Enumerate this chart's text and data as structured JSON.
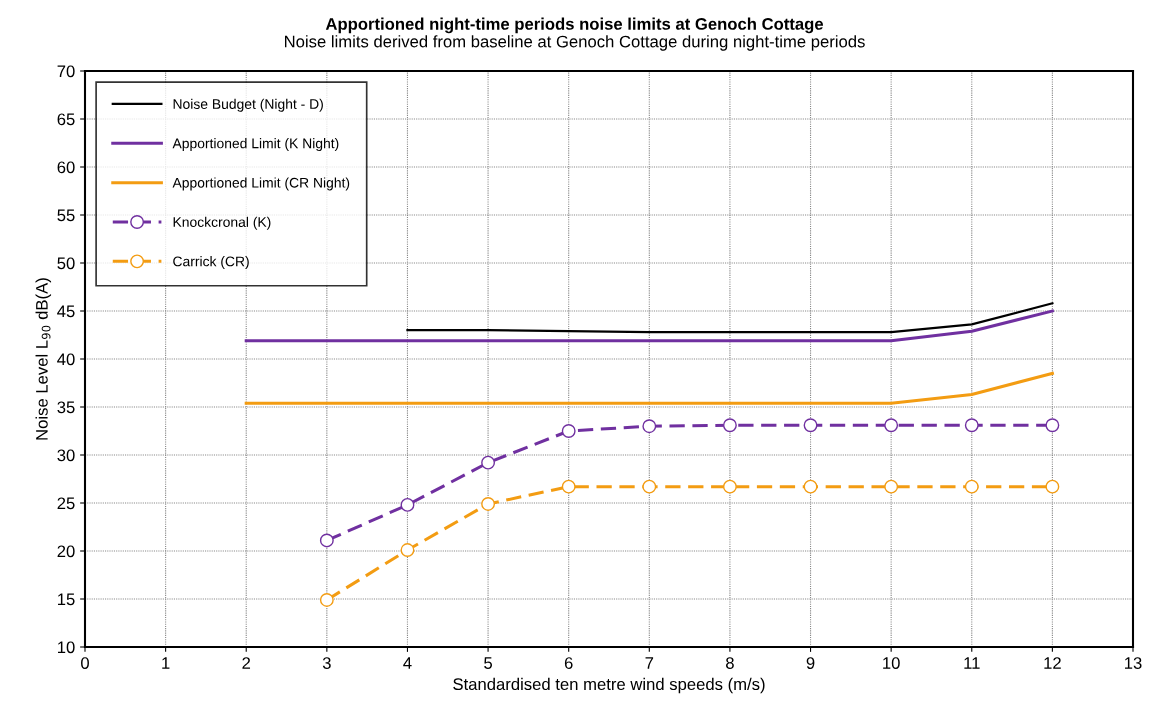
{
  "chart_data": {
    "type": "line",
    "title": "Apportioned night-time periods noise limits at Genoch Cottage",
    "subtitle": "Noise limits derived from baseline at Genoch Cottage during night-time periods",
    "xlabel": "Standardised ten metre wind speeds (m/s)",
    "ylabel": "Noise Level L$_{90}$ dB(A)",
    "xlim": [
      0,
      13
    ],
    "xticks": [
      0,
      1,
      2,
      3,
      4,
      5,
      6,
      7,
      8,
      9,
      10,
      11,
      12,
      13
    ],
    "ylim": [
      10,
      70
    ],
    "yticks": [
      10,
      15,
      20,
      25,
      30,
      35,
      40,
      45,
      50,
      55,
      60,
      65,
      70
    ],
    "grid": true,
    "legend": "top left",
    "series": [
      {
        "name": "Noise Budget (Night - D)",
        "color": "#000000",
        "x": [
          4,
          5,
          6,
          7,
          8,
          9,
          10,
          11,
          12
        ],
        "values": [
          43.0,
          43.0,
          42.9,
          42.8,
          42.8,
          42.8,
          42.8,
          43.6,
          45.8
        ],
        "marker": "none",
        "line_style": "solid"
      },
      {
        "name": "Apportioned Limit (K Night)",
        "color": "#7030a0",
        "x": [
          2,
          3,
          4,
          5,
          6,
          7,
          8,
          9,
          10,
          11,
          12
        ],
        "values": [
          41.9,
          41.9,
          41.9,
          41.9,
          41.9,
          41.9,
          41.9,
          41.9,
          41.9,
          42.9,
          45.0
        ],
        "marker": "none",
        "line_style": "solid"
      },
      {
        "name": "Apportioned Limit (CR Night)",
        "color": "#f39c12",
        "x": [
          2,
          3,
          4,
          5,
          6,
          7,
          8,
          9,
          10,
          11,
          12
        ],
        "values": [
          35.4,
          35.4,
          35.4,
          35.4,
          35.4,
          35.4,
          35.4,
          35.4,
          35.4,
          36.3,
          38.5
        ],
        "marker": "none",
        "line_style": "solid"
      },
      {
        "name": "Knockcronal (K)",
        "color": "#7030a0",
        "x": [
          3,
          4,
          5,
          6,
          7,
          8,
          9,
          10,
          11,
          12
        ],
        "values": [
          21.1,
          24.8,
          29.2,
          32.5,
          33.0,
          33.1,
          33.1,
          33.1,
          33.1,
          33.1
        ],
        "marker": "circle",
        "line_style": "dashed"
      },
      {
        "name": "Carrick (CR)",
        "color": "#f39c12",
        "x": [
          3,
          4,
          5,
          6,
          7,
          8,
          9,
          10,
          11,
          12
        ],
        "values": [
          14.9,
          20.1,
          24.9,
          26.7,
          26.7,
          26.7,
          26.7,
          26.7,
          26.7,
          26.7
        ],
        "marker": "circle",
        "line_style": "dashed"
      }
    ]
  }
}
